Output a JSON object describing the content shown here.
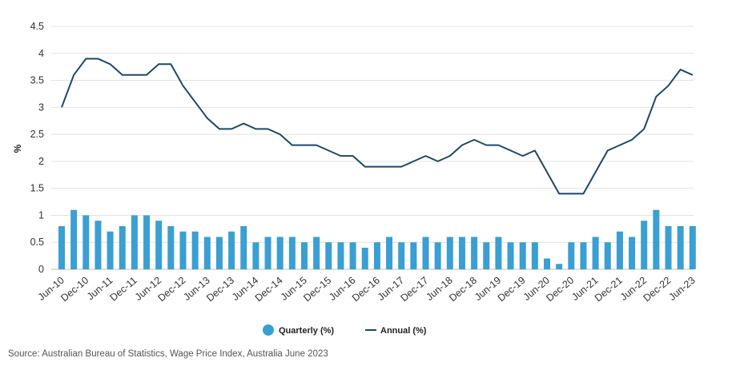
{
  "chart_data": {
    "type": "bar",
    "ylabel": "%",
    "ylim": [
      0,
      4.5
    ],
    "yticks": [
      "0",
      "0.5",
      "1",
      "1.5",
      "2",
      "2.5",
      "3",
      "3.5",
      "4",
      "4.5"
    ],
    "grid": true,
    "legend_position": "bottom-center",
    "x": [
      "Jun-10",
      "Sep-10",
      "Dec-10",
      "Mar-11",
      "Jun-11",
      "Sep-11",
      "Dec-11",
      "Mar-12",
      "Jun-12",
      "Sep-12",
      "Dec-12",
      "Mar-13",
      "Jun-13",
      "Sep-13",
      "Dec-13",
      "Mar-14",
      "Jun-14",
      "Sep-14",
      "Dec-14",
      "Mar-15",
      "Jun-15",
      "Sep-15",
      "Dec-15",
      "Mar-16",
      "Jun-16",
      "Sep-16",
      "Dec-16",
      "Mar-17",
      "Jun-17",
      "Sep-17",
      "Dec-17",
      "Mar-18",
      "Jun-18",
      "Sep-18",
      "Dec-18",
      "Mar-19",
      "Jun-19",
      "Sep-19",
      "Dec-19",
      "Mar-20",
      "Jun-20",
      "Sep-20",
      "Dec-20",
      "Mar-21",
      "Jun-21",
      "Sep-21",
      "Dec-21",
      "Mar-22",
      "Jun-22",
      "Sep-22",
      "Dec-22",
      "Mar-23",
      "Jun-23"
    ],
    "xtick_labels": [
      "Jun-10",
      "Dec-10",
      "Jun-11",
      "Dec-11",
      "Jun-12",
      "Dec-12",
      "Jun-13",
      "Dec-13",
      "Jun-14",
      "Dec-14",
      "Jun-15",
      "Dec-15",
      "Jun-16",
      "Dec-16",
      "Jun-17",
      "Dec-17",
      "Jun-18",
      "Dec-18",
      "Jun-19",
      "Dec-19",
      "Jun-20",
      "Dec-20",
      "Jun-21",
      "Dec-21",
      "Jun-22",
      "Dec-22",
      "Jun-23"
    ],
    "series": [
      {
        "name": "Quarterly (%)",
        "type": "bar",
        "color": "#3a9fd2",
        "values": [
          0.8,
          1.1,
          1.0,
          0.9,
          0.7,
          0.8,
          1.0,
          1.0,
          0.9,
          0.8,
          0.7,
          0.7,
          0.6,
          0.6,
          0.7,
          0.8,
          0.5,
          0.6,
          0.6,
          0.6,
          0.5,
          0.6,
          0.5,
          0.5,
          0.5,
          0.4,
          0.5,
          0.6,
          0.5,
          0.5,
          0.6,
          0.5,
          0.6,
          0.6,
          0.6,
          0.5,
          0.6,
          0.5,
          0.5,
          0.5,
          0.2,
          0.1,
          0.5,
          0.5,
          0.6,
          0.5,
          0.7,
          0.6,
          0.9,
          1.1,
          0.8,
          0.8,
          0.8
        ]
      },
      {
        "name": "Annual (%)",
        "type": "line",
        "color": "#1b4869",
        "values": [
          3.0,
          3.6,
          3.9,
          3.9,
          3.8,
          3.6,
          3.6,
          3.6,
          3.8,
          3.8,
          3.4,
          3.1,
          2.8,
          2.6,
          2.6,
          2.7,
          2.6,
          2.6,
          2.5,
          2.3,
          2.3,
          2.3,
          2.2,
          2.1,
          2.1,
          1.9,
          1.9,
          1.9,
          1.9,
          2.0,
          2.1,
          2.0,
          2.1,
          2.3,
          2.4,
          2.3,
          2.3,
          2.2,
          2.1,
          2.2,
          1.8,
          1.4,
          1.4,
          1.4,
          1.8,
          2.2,
          2.3,
          2.4,
          2.6,
          3.2,
          3.4,
          3.7,
          3.6
        ]
      }
    ]
  },
  "source_text": "Source: Australian Bureau of Statistics, Wage Price Index, Australia June 2023"
}
